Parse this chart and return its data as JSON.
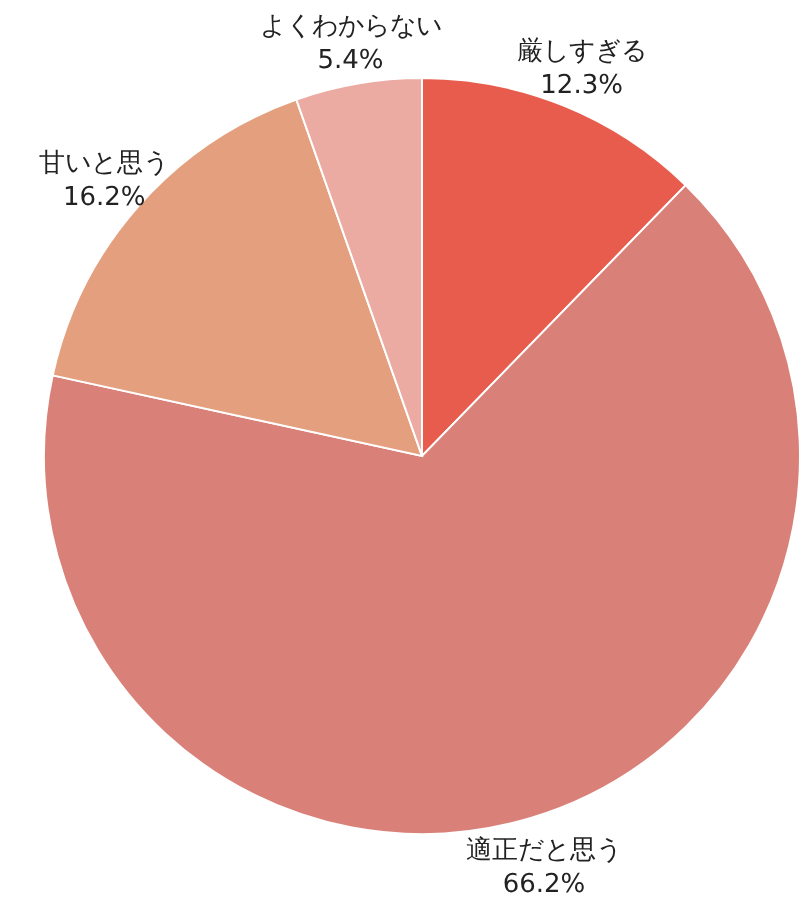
{
  "chart_data": {
    "type": "pie",
    "categories": [
      "厳しすぎる",
      "適正だと思う",
      "甘いと思う",
      "よくわからない"
    ],
    "values": [
      12.3,
      66.2,
      16.2,
      5.4
    ],
    "colors": [
      "#e85c4d",
      "#d98178",
      "#e4a07e",
      "#ebaba3"
    ],
    "value_labels": [
      "12.3%",
      "66.2%",
      "16.2%",
      "5.4%"
    ],
    "legend": false
  }
}
